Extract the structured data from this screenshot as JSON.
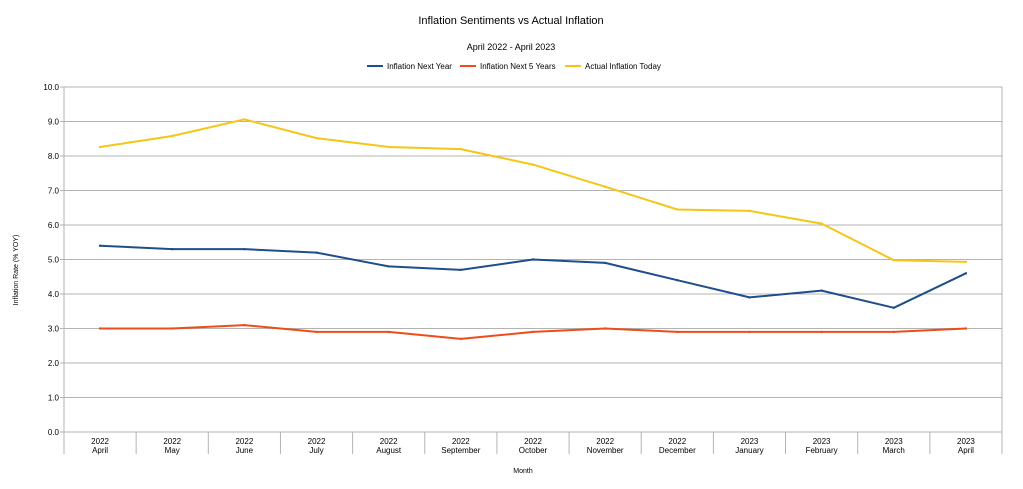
{
  "chart_data": {
    "type": "line",
    "title": "Inflation Sentiments vs Actual Inflation",
    "subtitle": "April 2022 - April 2023",
    "xlabel": "Month",
    "ylabel": "Inflation Rate (% YOY)",
    "ylim": [
      0,
      10
    ],
    "yticks": [
      "0.0",
      "1.0",
      "2.0",
      "3.0",
      "4.0",
      "5.0",
      "6.0",
      "7.0",
      "8.0",
      "9.0",
      "10.0"
    ],
    "grid": true,
    "legend_position": "top",
    "categories": [
      {
        "year": "2022",
        "month": "April"
      },
      {
        "year": "2022",
        "month": "May"
      },
      {
        "year": "2022",
        "month": "June"
      },
      {
        "year": "2022",
        "month": "July"
      },
      {
        "year": "2022",
        "month": "August"
      },
      {
        "year": "2022",
        "month": "September"
      },
      {
        "year": "2022",
        "month": "October"
      },
      {
        "year": "2022",
        "month": "November"
      },
      {
        "year": "2022",
        "month": "December"
      },
      {
        "year": "2023",
        "month": "January"
      },
      {
        "year": "2023",
        "month": "February"
      },
      {
        "year": "2023",
        "month": "March"
      },
      {
        "year": "2023",
        "month": "April"
      }
    ],
    "series": [
      {
        "name": "Inflation Next Year",
        "color": "#1f4e8c",
        "values": [
          5.4,
          5.3,
          5.3,
          5.2,
          4.8,
          4.7,
          5.0,
          4.9,
          4.4,
          3.9,
          4.1,
          3.6,
          4.6
        ]
      },
      {
        "name": "Inflation Next 5 Years",
        "color": "#ee4d1a",
        "values": [
          3.0,
          3.0,
          3.1,
          2.9,
          2.9,
          2.7,
          2.9,
          3.0,
          2.9,
          2.9,
          2.9,
          2.9,
          3.0
        ]
      },
      {
        "name": "Actual Inflation Today",
        "color": "#f5c518",
        "values": [
          8.26,
          8.58,
          9.06,
          8.52,
          8.26,
          8.2,
          7.75,
          7.11,
          6.45,
          6.41,
          6.04,
          4.98,
          4.93
        ]
      }
    ]
  }
}
